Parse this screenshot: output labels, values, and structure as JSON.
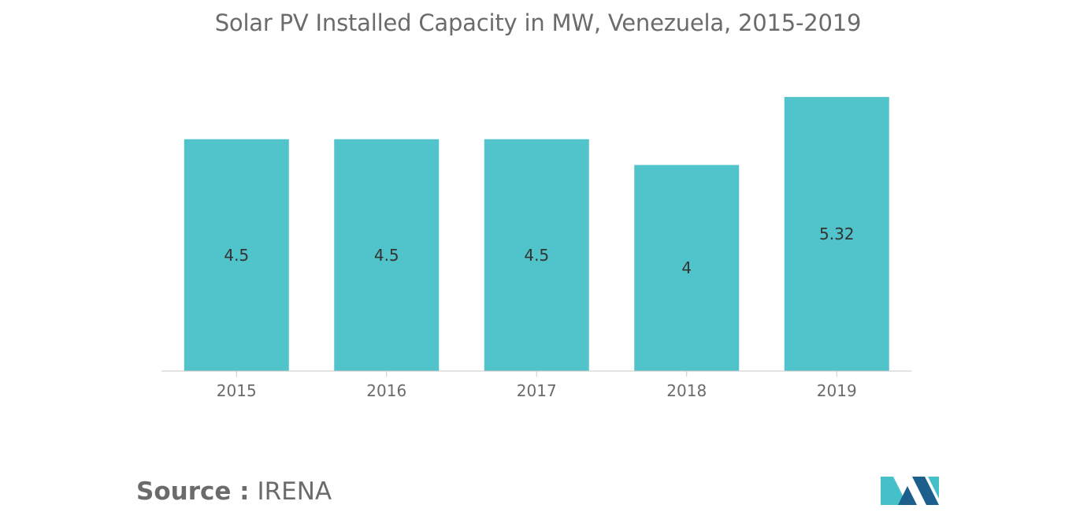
{
  "title": "Solar PV Installed Capacity in MW, Venezuela, 2015-2019",
  "source": {
    "label": "Source :",
    "value": "IRENA"
  },
  "colors": {
    "bar": "#50c4ca",
    "text": "#6b6b6b",
    "axis": "#c8c8c8",
    "value_label": "#333333",
    "logo_dark": "#1c5f8c",
    "logo_light": "#46c0c8"
  },
  "logo": {
    "icon": "mordor-intelligence-logo-icon"
  },
  "chart_data": {
    "type": "bar",
    "title": "Solar PV Installed Capacity in MW, Venezuela, 2015-2019",
    "categories": [
      "2015",
      "2016",
      "2017",
      "2018",
      "2019"
    ],
    "values": [
      4.5,
      4.5,
      4.5,
      4,
      5.32
    ],
    "value_labels": [
      "4.5",
      "4.5",
      "4.5",
      "4",
      "5.32"
    ],
    "xlabel": "",
    "ylabel": "",
    "ylim": [
      0,
      6
    ],
    "grid": false,
    "legend": "none"
  }
}
